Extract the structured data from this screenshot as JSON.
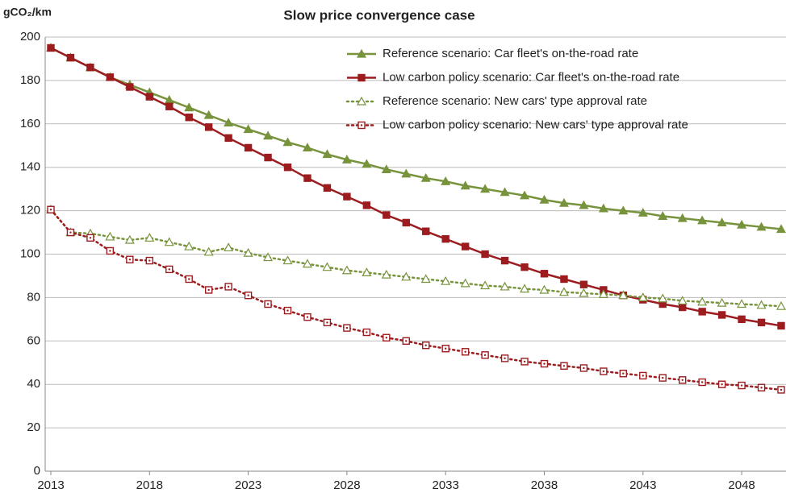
{
  "chart_data": {
    "type": "line",
    "title": "Slow price convergence case",
    "y_label": "gCO₂/km",
    "x": [
      2013,
      2014,
      2015,
      2016,
      2017,
      2018,
      2019,
      2020,
      2021,
      2022,
      2023,
      2024,
      2025,
      2026,
      2027,
      2028,
      2029,
      2030,
      2031,
      2032,
      2033,
      2034,
      2035,
      2036,
      2037,
      2038,
      2039,
      2040,
      2041,
      2042,
      2043,
      2044,
      2045,
      2046,
      2047,
      2048,
      2049,
      2050
    ],
    "series": [
      {
        "name": "Reference scenario: Car fleet's on-the-road rate",
        "color": "#77933c",
        "style": "solid",
        "marker": "triangle-filled",
        "values": [
          195,
          190.5,
          186,
          181.5,
          178,
          174.5,
          171,
          167.5,
          164,
          160.5,
          157.5,
          154.5,
          151.5,
          149,
          146,
          143.5,
          141.5,
          139,
          137,
          135,
          133.5,
          131.5,
          130,
          128.5,
          127,
          125,
          123.5,
          122.5,
          121,
          120,
          119,
          117.5,
          116.5,
          115.5,
          114.5,
          113.5,
          112.5,
          111.5
        ]
      },
      {
        "name": "Low carbon policy scenario: Car fleet's on-the-road rate",
        "color": "#9c1c1f",
        "style": "solid",
        "marker": "square-filled",
        "values": [
          195,
          190.5,
          186,
          181.5,
          177,
          172.5,
          168,
          163,
          158.5,
          153.5,
          149,
          144.5,
          140,
          135,
          130.5,
          126.5,
          122.5,
          118,
          114.5,
          110.5,
          107,
          103.5,
          100,
          97,
          94,
          91,
          88.5,
          86,
          83.5,
          81,
          79,
          77,
          75.5,
          73.5,
          72,
          70,
          68.5,
          67
        ]
      },
      {
        "name": "Reference scenario: New cars' type approval rate",
        "color": "#77933c",
        "style": "dotted",
        "marker": "triangle-open",
        "values": [
          120.5,
          110,
          109.5,
          108,
          106.5,
          107.5,
          105.5,
          103.5,
          101,
          103,
          100.5,
          98.5,
          97,
          95.5,
          94,
          92.5,
          91.5,
          90.5,
          89.5,
          88.5,
          87.5,
          86.5,
          85.5,
          85,
          84,
          83.5,
          82.5,
          82,
          81.5,
          81,
          80,
          79.5,
          78.5,
          78,
          77.5,
          77,
          76.5,
          76
        ]
      },
      {
        "name": "Low carbon policy scenario: New cars' type approval rate",
        "color": "#9c1c1f",
        "style": "dotted",
        "marker": "square-open",
        "values": [
          120.5,
          110,
          107.5,
          101.5,
          97.5,
          97,
          93,
          88.5,
          83.5,
          85,
          81,
          77,
          74,
          71,
          68.5,
          66,
          64,
          61.5,
          60,
          58,
          56.5,
          55,
          53.5,
          52,
          50.5,
          49.5,
          48.5,
          47.5,
          46,
          45,
          44,
          43,
          42,
          41,
          40,
          39.5,
          38.5,
          37.5
        ]
      }
    ],
    "xlim": [
      2013,
      2050
    ],
    "xticks": [
      2013,
      2018,
      2023,
      2028,
      2033,
      2038,
      2043,
      2048
    ],
    "ylim": [
      0,
      200
    ],
    "yticks": [
      0,
      20,
      40,
      60,
      80,
      100,
      120,
      140,
      160,
      180,
      200
    ],
    "grid": true,
    "legend": "top-right"
  }
}
